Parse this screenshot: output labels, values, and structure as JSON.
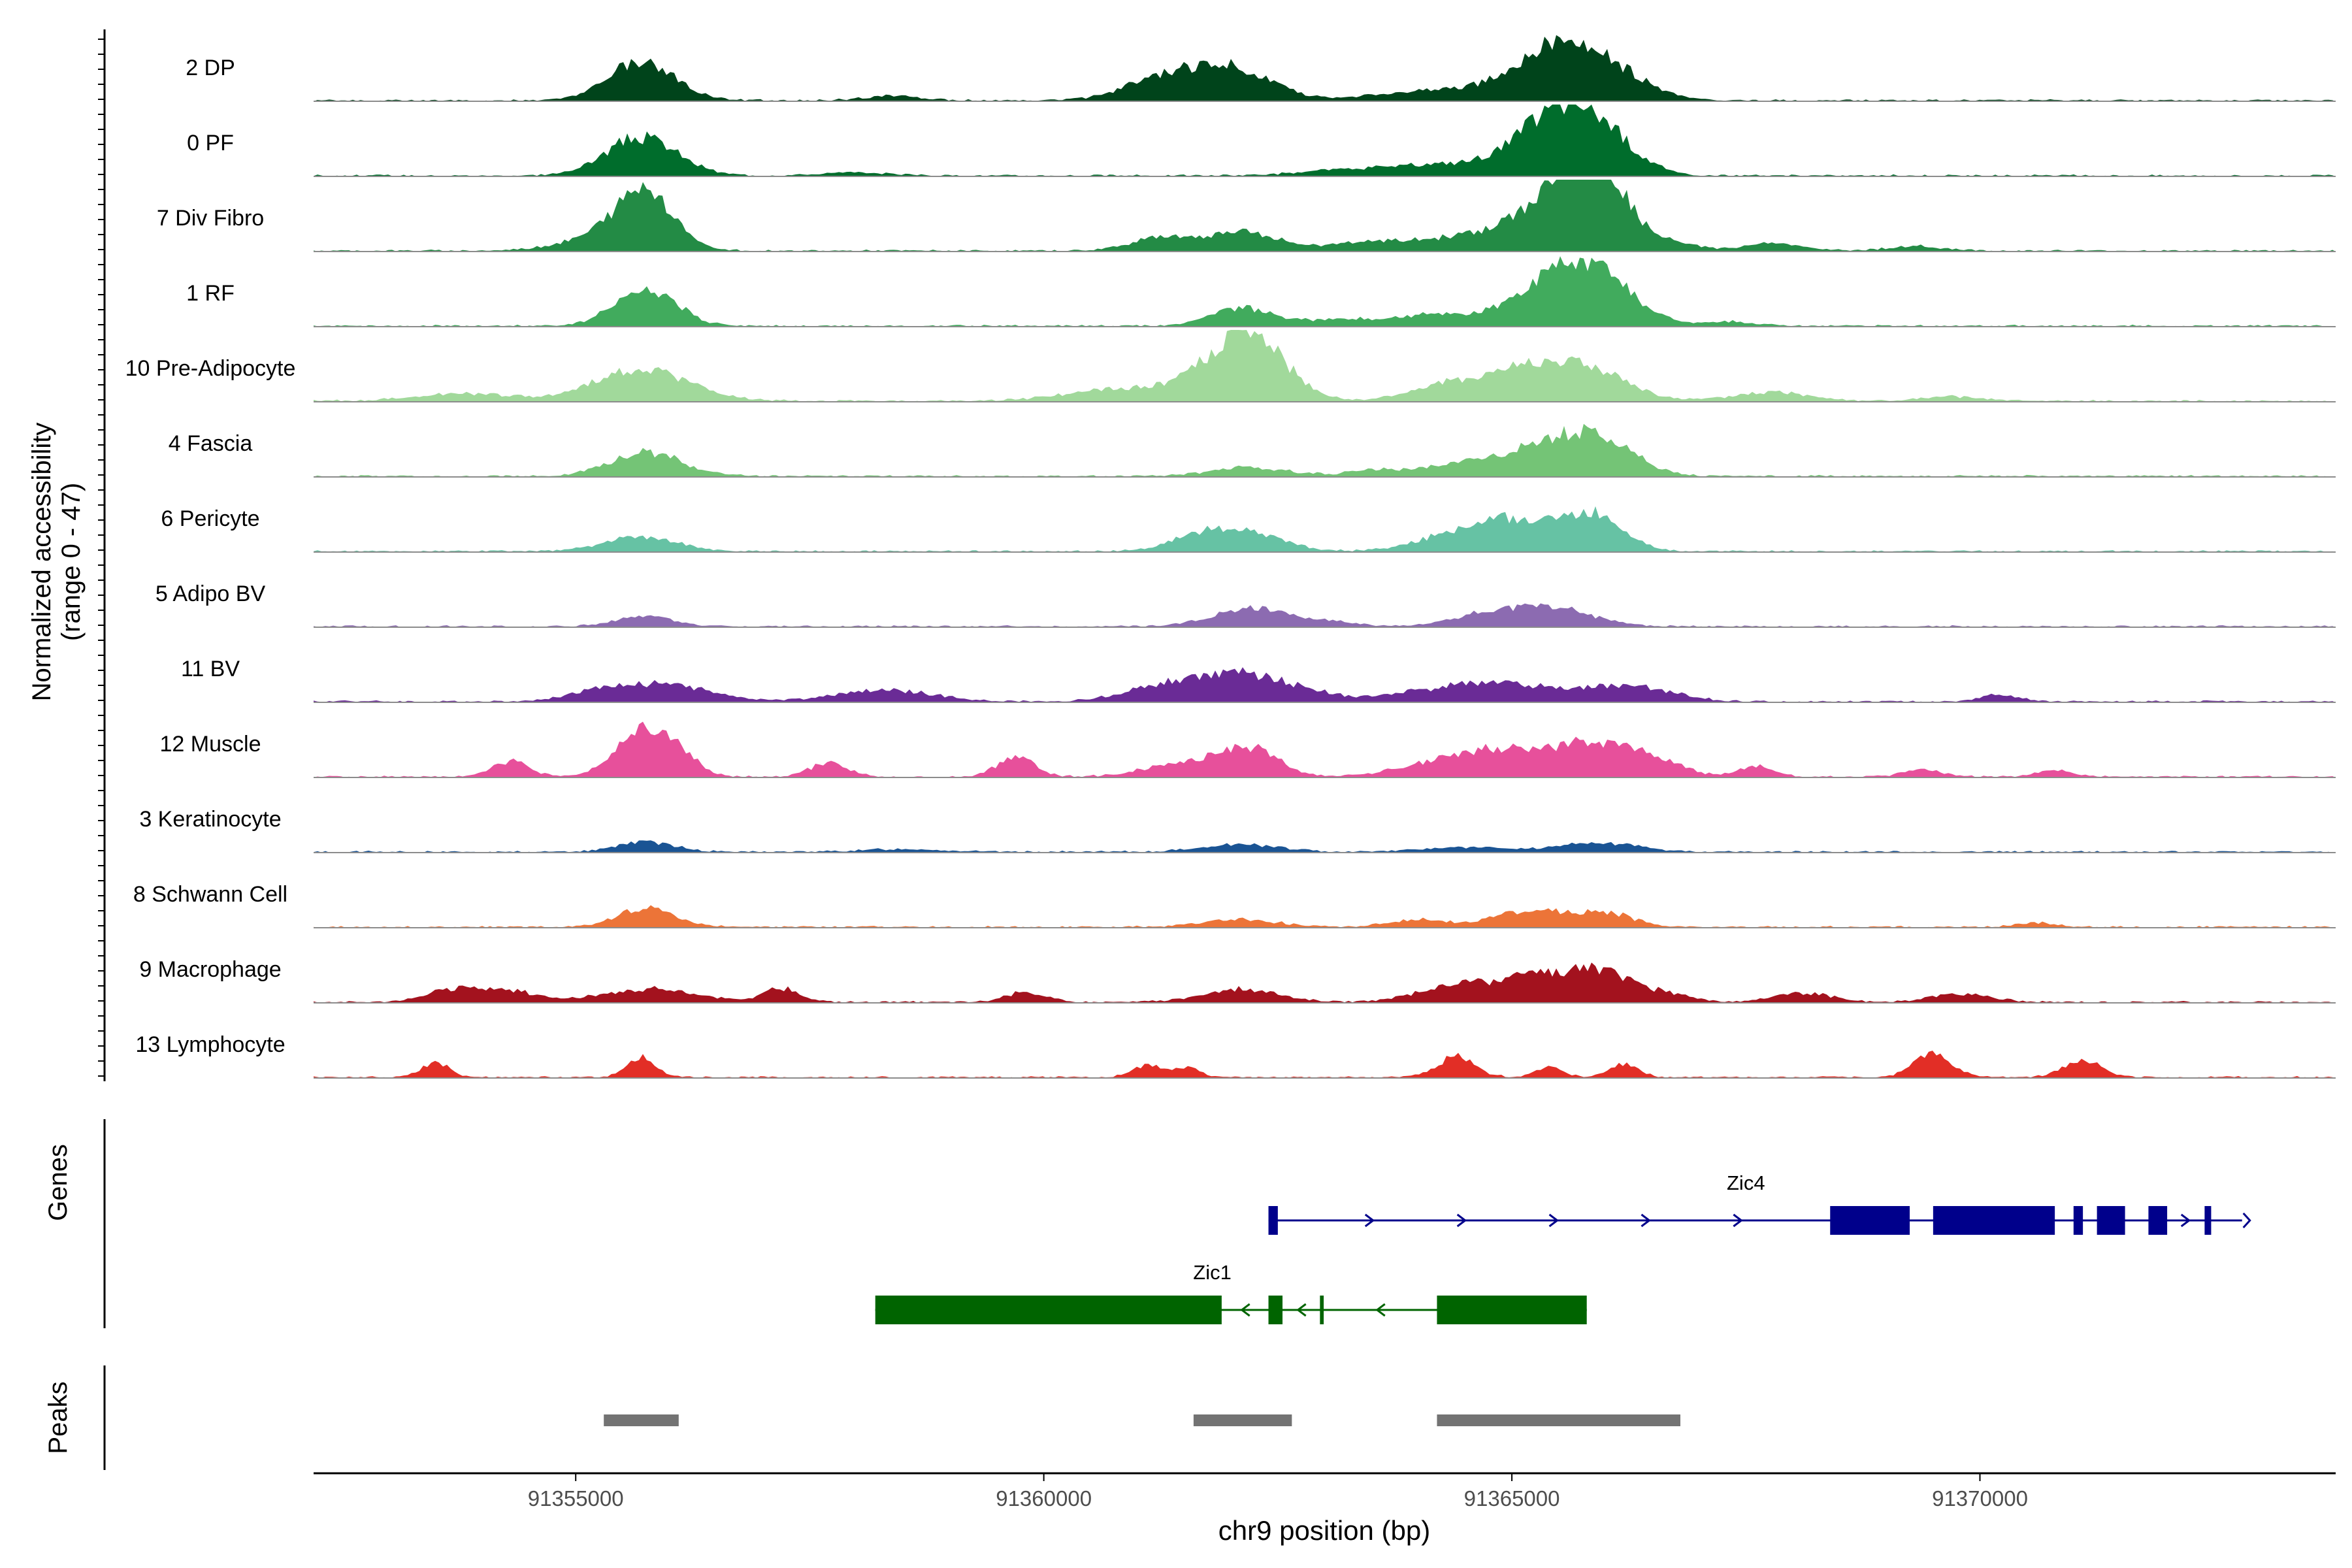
{
  "chart_data": {
    "type": "area",
    "chromosome": "chr9",
    "region": [
      91352200,
      91373800
    ],
    "ylabel": "Normalized accessibility",
    "ylabel_range": "(range 0 - 47)",
    "xlabel": "chr9 position (bp)",
    "x_ticks": [
      91355000,
      91360000,
      91365000,
      91370000
    ],
    "x_tick_labels": [
      "91355000",
      "91360000",
      "91365000",
      "91370000"
    ],
    "y_range": [
      0,
      47
    ],
    "tracks": [
      {
        "name": "2 DP",
        "color": "#00441b",
        "peaks": [
          [
            91355700,
            26,
            360
          ],
          [
            91361600,
            14,
            500
          ],
          [
            91362100,
            13,
            400
          ],
          [
            91365400,
            25,
            420
          ],
          [
            91365900,
            23,
            450
          ],
          [
            91364300,
            7,
            700
          ],
          [
            91361200,
            6,
            400
          ],
          [
            91358400,
            3,
            300
          ]
        ]
      },
      {
        "name": "0 PF",
        "color": "#006d2c",
        "peaks": [
          [
            91355700,
            26,
            380
          ],
          [
            91365400,
            29,
            380
          ],
          [
            91365900,
            30,
            380
          ],
          [
            91364500,
            8,
            700
          ],
          [
            91363200,
            3,
            500
          ],
          [
            91358000,
            2,
            400
          ]
        ]
      },
      {
        "name": "7 Div Fibro",
        "color": "#238b45",
        "peaks": [
          [
            91355750,
            40,
            300
          ],
          [
            91355200,
            8,
            400
          ],
          [
            91365500,
            35,
            350
          ],
          [
            91365950,
            47,
            300
          ],
          [
            91364700,
            12,
            500
          ],
          [
            91362100,
            13,
            400
          ],
          [
            91361200,
            8,
            300
          ],
          [
            91363500,
            6,
            400
          ],
          [
            91366700,
            5,
            300
          ],
          [
            91367800,
            5,
            300
          ],
          [
            91369300,
            3,
            300
          ]
        ]
      },
      {
        "name": "1 RF",
        "color": "#41ab5d",
        "peaks": [
          [
            91355750,
            24,
            330
          ],
          [
            91365400,
            26,
            400
          ],
          [
            91365950,
            30,
            380
          ],
          [
            91362100,
            12,
            300
          ],
          [
            91364200,
            8,
            500
          ],
          [
            91363000,
            4,
            400
          ],
          [
            91367300,
            3,
            300
          ]
        ]
      },
      {
        "name": "10 Pre-Adipocyte",
        "color": "#a1d99b",
        "peaks": [
          [
            91355700,
            22,
            500
          ],
          [
            91353800,
            5,
            500
          ],
          [
            91362200,
            41,
            380
          ],
          [
            91361600,
            10,
            500
          ],
          [
            91360600,
            6,
            500
          ],
          [
            91365200,
            22,
            450
          ],
          [
            91365900,
            16,
            400
          ],
          [
            91364300,
            10,
            400
          ],
          [
            91367800,
            6,
            400
          ],
          [
            91369700,
            3,
            300
          ]
        ]
      },
      {
        "name": "4 Fascia",
        "color": "#74c476",
        "peaks": [
          [
            91355750,
            16,
            380
          ],
          [
            91365350,
            17,
            400
          ],
          [
            91365950,
            23,
            380
          ],
          [
            91364500,
            8,
            500
          ],
          [
            91362200,
            6,
            400
          ],
          [
            91363500,
            3,
            300
          ]
        ]
      },
      {
        "name": "6 Pericyte",
        "color": "#66c2a4",
        "peaks": [
          [
            91355700,
            10,
            380
          ],
          [
            91362100,
            14,
            400
          ],
          [
            91361600,
            6,
            300
          ],
          [
            91365400,
            15,
            400
          ],
          [
            91365900,
            19,
            300
          ],
          [
            91364400,
            12,
            400
          ],
          [
            91364900,
            10,
            300
          ]
        ]
      },
      {
        "name": "5 Adipo BV",
        "color": "#8c6bb1",
        "peaks": [
          [
            91355750,
            7,
            300
          ],
          [
            91362200,
            12,
            400
          ],
          [
            91364800,
            9,
            400
          ],
          [
            91365500,
            11,
            400
          ],
          [
            91363000,
            3,
            300
          ]
        ]
      },
      {
        "name": "11 BV",
        "color": "#6a2b96",
        "peaks": [
          [
            91355900,
            12,
            500
          ],
          [
            91355200,
            5,
            300
          ],
          [
            91358300,
            8,
            500
          ],
          [
            91362100,
            19,
            600
          ],
          [
            91361200,
            6,
            400
          ],
          [
            91364300,
            9,
            500
          ],
          [
            91364900,
            8,
            300
          ],
          [
            91365700,
            8,
            500
          ],
          [
            91366400,
            7,
            400
          ],
          [
            91370200,
            5,
            200
          ]
        ]
      },
      {
        "name": "12 Muscle",
        "color": "#e7509b",
        "peaks": [
          [
            91355700,
            31,
            280
          ],
          [
            91356100,
            13,
            200
          ],
          [
            91354300,
            10,
            200
          ],
          [
            91357700,
            9,
            200
          ],
          [
            91359700,
            13,
            200
          ],
          [
            91361500,
            9,
            400
          ],
          [
            91362200,
            19,
            300
          ],
          [
            91364400,
            12,
            500
          ],
          [
            91365300,
            17,
            500
          ],
          [
            91365950,
            14,
            300
          ],
          [
            91366500,
            12,
            300
          ],
          [
            91367600,
            7,
            200
          ],
          [
            91369400,
            5,
            200
          ],
          [
            91370800,
            4,
            200
          ]
        ]
      },
      {
        "name": "3 Keratinocyte",
        "color": "#1a5494",
        "peaks": [
          [
            91355750,
            7,
            300
          ],
          [
            91362100,
            5,
            400
          ],
          [
            91365950,
            6,
            400
          ],
          [
            91364500,
            3,
            500
          ],
          [
            91358500,
            2,
            400
          ]
        ]
      },
      {
        "name": "8 Schwann Cell",
        "color": "#ec7438",
        "peaks": [
          [
            91355750,
            13,
            300
          ],
          [
            91362100,
            5,
            400
          ],
          [
            91365200,
            11,
            400
          ],
          [
            91366000,
            9,
            300
          ],
          [
            91364000,
            5,
            300
          ],
          [
            91370600,
            3,
            200
          ]
        ]
      },
      {
        "name": "9 Macrophage",
        "color": "#a3121e",
        "peaks": [
          [
            91355800,
            9,
            500
          ],
          [
            91353700,
            8,
            300
          ],
          [
            91354300,
            7,
            300
          ],
          [
            91357200,
            9,
            200
          ],
          [
            91359800,
            7,
            200
          ],
          [
            91362100,
            9,
            400
          ],
          [
            91364400,
            11,
            400
          ],
          [
            91365300,
            17,
            400
          ],
          [
            91365950,
            18,
            300
          ],
          [
            91366600,
            6,
            300
          ],
          [
            91368100,
            6,
            300
          ],
          [
            91369800,
            6,
            300
          ]
        ]
      },
      {
        "name": "13 Lymphocyte",
        "color": "#e22e26",
        "peaks": [
          [
            91353500,
            10,
            150
          ],
          [
            91355700,
            14,
            150
          ],
          [
            91361100,
            8,
            150
          ],
          [
            91361500,
            7,
            150
          ],
          [
            91364400,
            14,
            200
          ],
          [
            91365400,
            7,
            150
          ],
          [
            91366200,
            9,
            150
          ],
          [
            91369500,
            16,
            200
          ],
          [
            91371100,
            12,
            200
          ]
        ]
      }
    ],
    "genes_label": "Genes",
    "genes": [
      {
        "name": "Zic4",
        "strand": "+",
        "color": "#00008b",
        "start": 91362400,
        "end": 91372800,
        "exons": [
          [
            91362400,
            91362500
          ],
          [
            91368400,
            91369250
          ],
          [
            91369500,
            91370800
          ],
          [
            91371000,
            91371100
          ],
          [
            91371250,
            91371550
          ],
          [
            91371800,
            91372000
          ],
          [
            91372400,
            91372470
          ]
        ]
      },
      {
        "name": "Zic1",
        "strand": "-",
        "color": "#006400",
        "start": 91358200,
        "end": 91365800,
        "exons": [
          [
            91358200,
            91361900
          ],
          [
            91362400,
            91362550
          ],
          [
            91362950,
            91362990
          ],
          [
            91364200,
            91365800
          ]
        ]
      }
    ],
    "peaks_label": "Peaks",
    "peak_regions": [
      [
        91355300,
        91356100
      ],
      [
        91361600,
        91362650
      ],
      [
        91364200,
        91366800
      ]
    ]
  }
}
